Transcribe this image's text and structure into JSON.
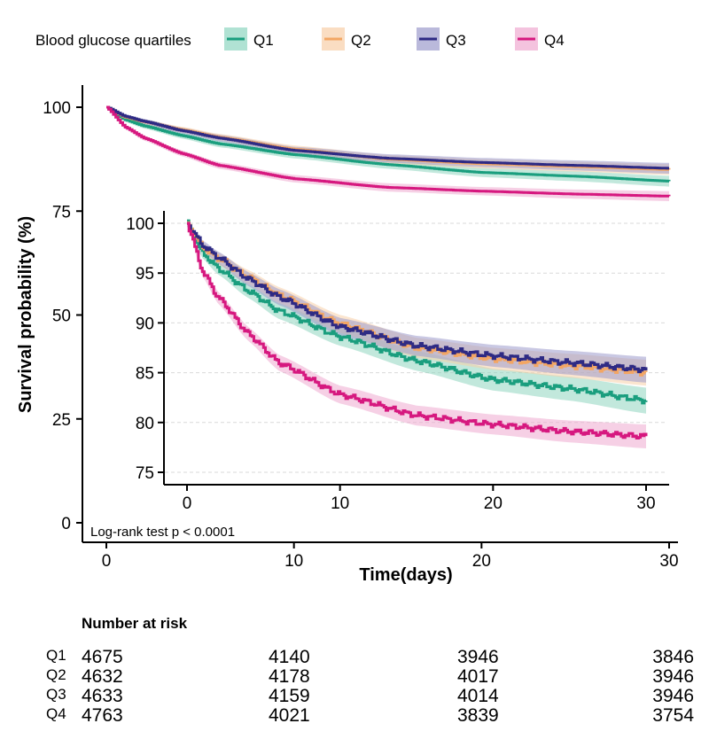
{
  "chart_data": {
    "type": "line",
    "title": "",
    "xlabel": "Time(days)",
    "ylabel": "Survival probability (%)",
    "legend": {
      "title": "Blood glucose quartiles",
      "placement": "top",
      "entries": [
        "Q1",
        "Q2",
        "Q3",
        "Q4"
      ]
    },
    "annotation": "Log-rank test p < 0.0001",
    "main_plot": {
      "xlim": [
        0,
        30
      ],
      "ylim": [
        0,
        100
      ],
      "x_ticks": [
        "0",
        "10",
        "20",
        "30"
      ],
      "y_ticks": [
        "0",
        "25",
        "50",
        "75",
        "100"
      ],
      "grid": false
    },
    "inset_plot": {
      "xlim": [
        0,
        30
      ],
      "ylim": [
        75,
        100
      ],
      "x_ticks": [
        "0",
        "10",
        "20",
        "30"
      ],
      "y_ticks": [
        "75",
        "80",
        "85",
        "90",
        "95",
        "100"
      ],
      "grid": "horizontal dashed"
    },
    "series": [
      {
        "name": "Q1",
        "color": "#1a9e7e",
        "band_color": "#8fd6c0",
        "ci_halfwidth": [
          0,
          0.5,
          0.6,
          0.7,
          0.8,
          0.9,
          1.0,
          1.1,
          1.2,
          1.3
        ],
        "x": [
          0,
          1,
          2,
          4,
          6,
          10,
          15,
          20,
          25,
          30
        ],
        "y": [
          100,
          97.0,
          95.5,
          93.2,
          91.2,
          88.6,
          86.2,
          84.3,
          83.4,
          82.2
        ]
      },
      {
        "name": "Q2",
        "color": "#f3a664",
        "band_color": "#f8cfa8",
        "ci_halfwidth": [
          0,
          0.5,
          0.6,
          0.7,
          0.8,
          0.9,
          1.0,
          1.1,
          1.2,
          1.3
        ],
        "x": [
          0,
          1,
          2,
          4,
          6,
          10,
          15,
          20,
          25,
          30
        ],
        "y": [
          100,
          97.6,
          96.5,
          94.6,
          92.8,
          89.9,
          87.5,
          86.4,
          85.7,
          85.0
        ]
      },
      {
        "name": "Q3",
        "color": "#2e2a84",
        "band_color": "#9d9bcc",
        "ci_halfwidth": [
          0,
          0.5,
          0.6,
          0.7,
          0.8,
          0.9,
          1.0,
          1.1,
          1.2,
          1.3
        ],
        "x": [
          0,
          1,
          2,
          4,
          6,
          10,
          15,
          20,
          25,
          30
        ],
        "y": [
          100,
          97.8,
          96.6,
          94.4,
          92.6,
          89.6,
          87.7,
          86.7,
          86.0,
          85.3
        ]
      },
      {
        "name": "Q4",
        "color": "#d6187f",
        "band_color": "#efaad0",
        "ci_halfwidth": [
          0,
          0.5,
          0.6,
          0.7,
          0.8,
          0.9,
          1.0,
          1.0,
          1.1,
          1.2
        ],
        "x": [
          0,
          1,
          2,
          4,
          6,
          10,
          15,
          20,
          25,
          30
        ],
        "y": [
          100,
          95.2,
          92.6,
          88.9,
          86.0,
          82.8,
          80.7,
          79.8,
          79.1,
          78.6
        ]
      }
    ],
    "risk_table": {
      "title": "Number at risk",
      "times": [
        0,
        10,
        20,
        30
      ],
      "rows": [
        {
          "label": "Q1",
          "values": [
            "4675",
            "4140",
            "3946",
            "3846"
          ]
        },
        {
          "label": "Q2",
          "values": [
            "4632",
            "4178",
            "4017",
            "3946"
          ]
        },
        {
          "label": "Q3",
          "values": [
            "4633",
            "4159",
            "4014",
            "3946"
          ]
        },
        {
          "label": "Q4",
          "values": [
            "4763",
            "4021",
            "3839",
            "3754"
          ]
        }
      ]
    }
  }
}
